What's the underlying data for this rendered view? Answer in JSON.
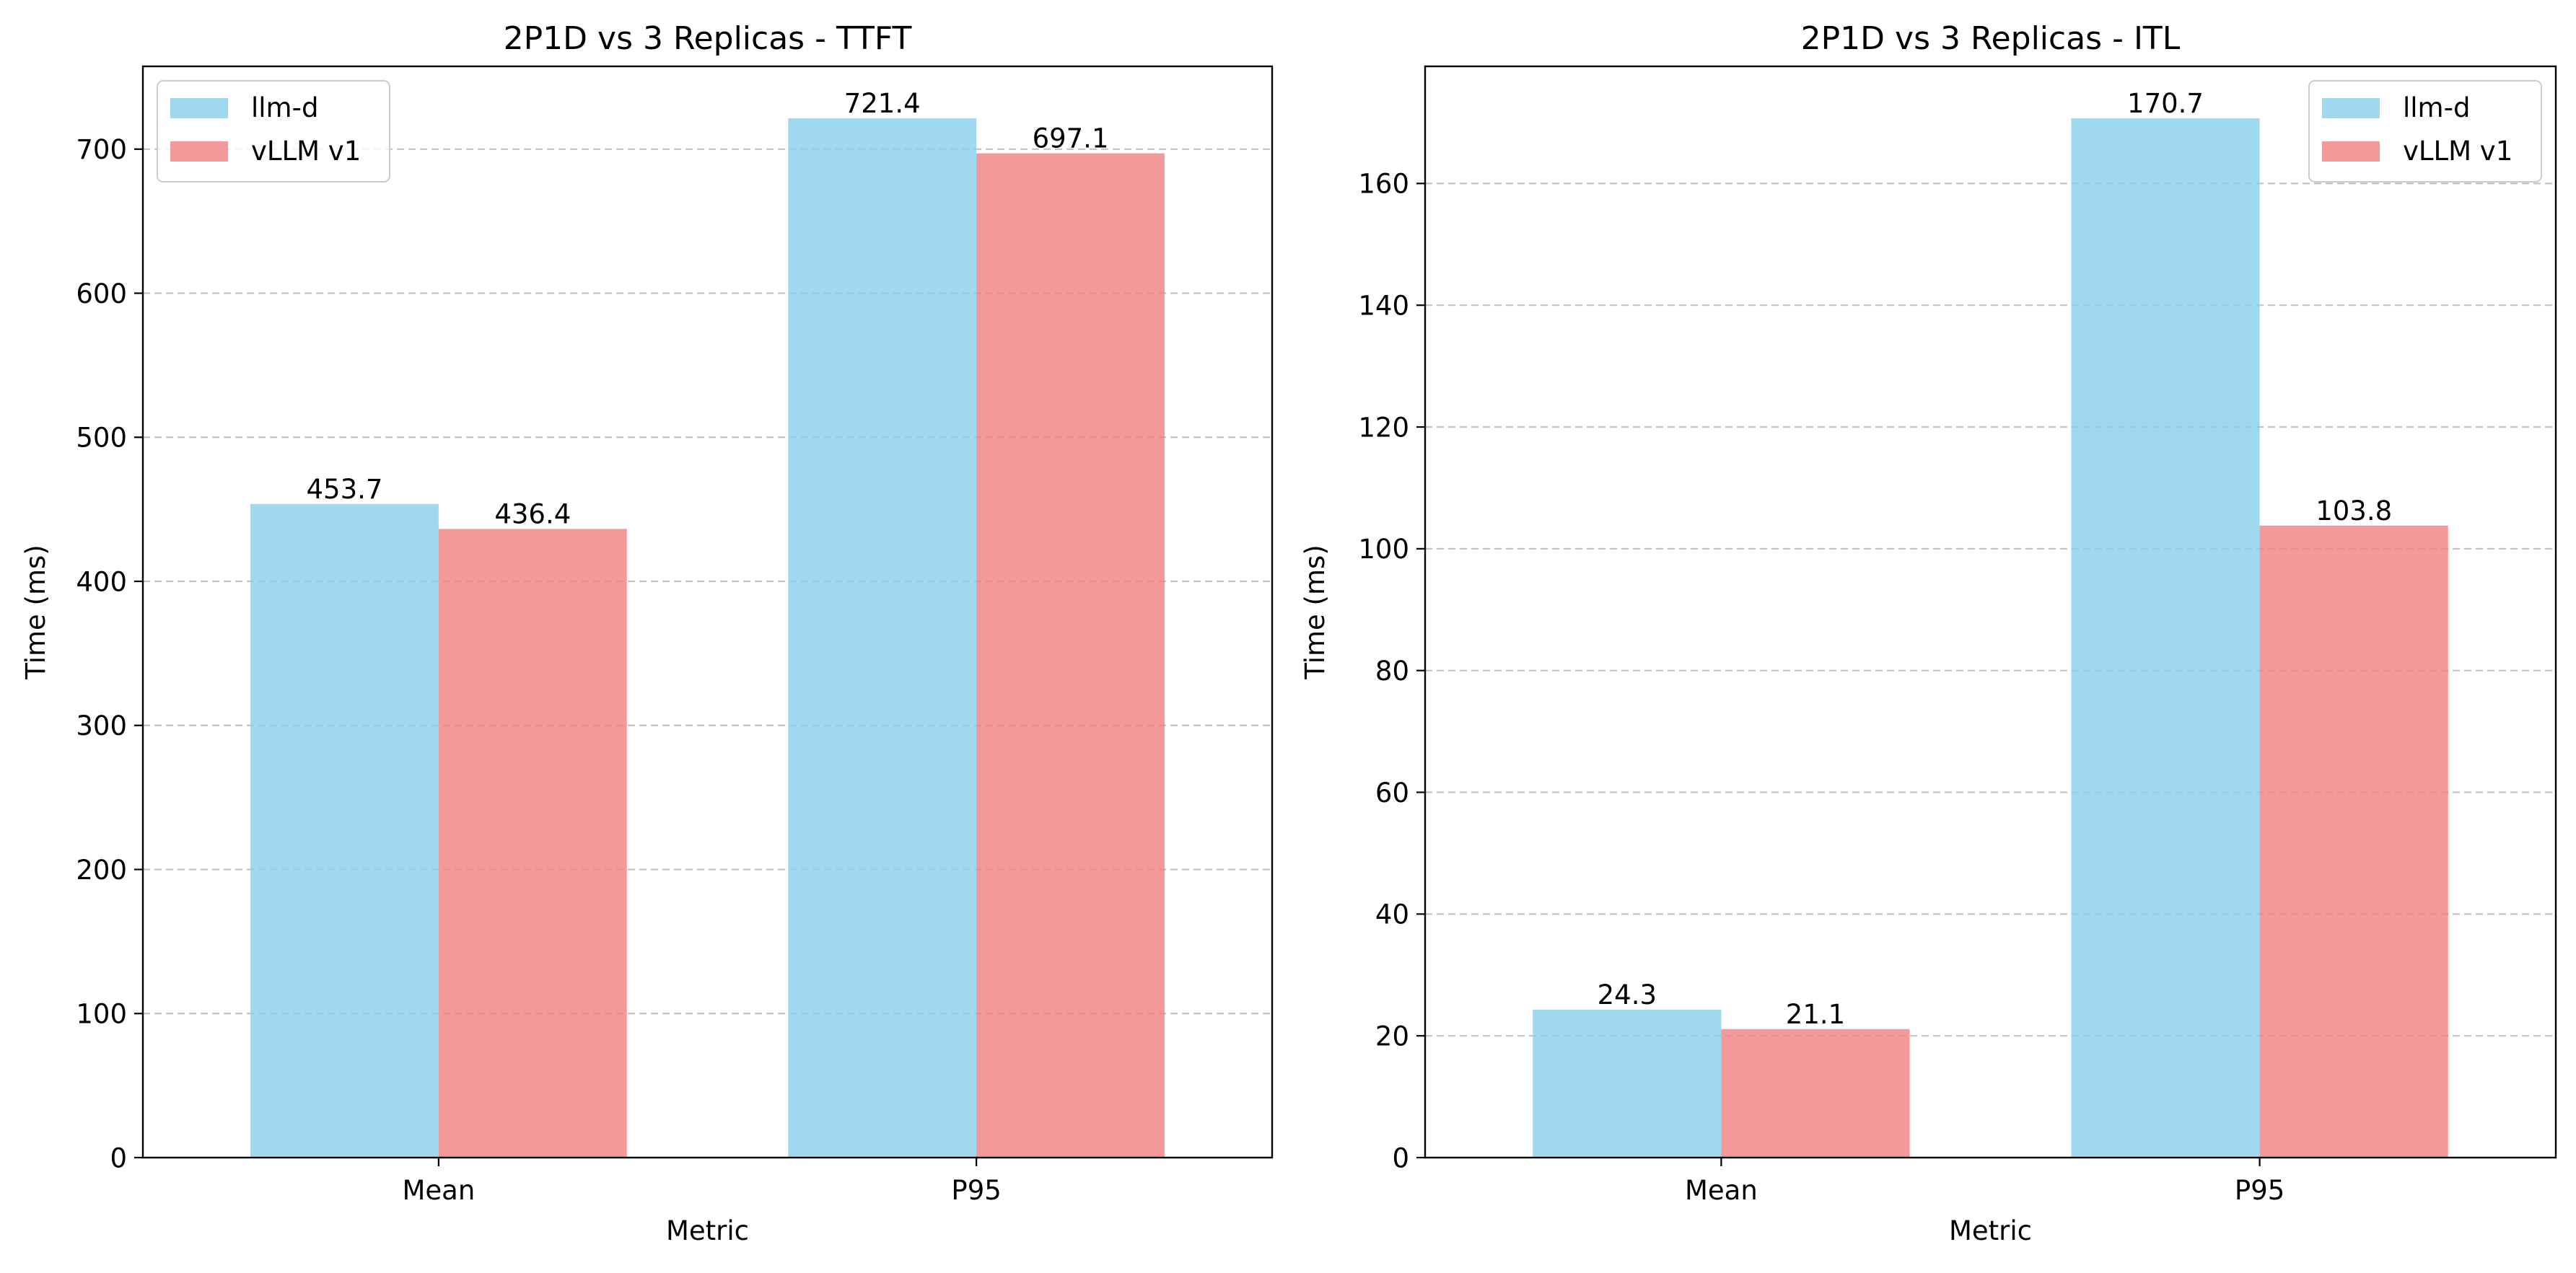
{
  "colors": {
    "llm_d": "#87ceeb",
    "vllm_v1": "#f08080",
    "grid": "#b0b0b0",
    "axis": "#000000"
  },
  "chart_data": [
    {
      "type": "bar",
      "title": "2P1D vs 3 Replicas - TTFT",
      "xlabel": "Metric",
      "ylabel": "Time (ms)",
      "categories": [
        "Mean",
        "P95"
      ],
      "series": [
        {
          "name": "llm-d",
          "values": [
            453.7,
            721.4
          ],
          "labels": [
            "453.7",
            "721.4"
          ]
        },
        {
          "name": "vLLM v1",
          "values": [
            436.4,
            697.1
          ],
          "labels": [
            "436.4",
            "697.1"
          ]
        }
      ],
      "ylim": [
        0,
        757.47
      ],
      "yticks": [
        0,
        100,
        200,
        300,
        400,
        500,
        600,
        700
      ],
      "ytick_labels": [
        "0",
        "100",
        "200",
        "300",
        "400",
        "500",
        "600",
        "700"
      ],
      "grid": "y-dashed",
      "legend": "upper left"
    },
    {
      "type": "bar",
      "title": "2P1D vs 3 Replicas - ITL",
      "xlabel": "Metric",
      "ylabel": "Time (ms)",
      "categories": [
        "Mean",
        "P95"
      ],
      "series": [
        {
          "name": "llm-d",
          "values": [
            24.3,
            170.7
          ],
          "labels": [
            "24.3",
            "170.7"
          ]
        },
        {
          "name": "vLLM v1",
          "values": [
            21.1,
            103.8
          ],
          "labels": [
            "21.1",
            "103.8"
          ]
        }
      ],
      "ylim": [
        0,
        179.235
      ],
      "yticks": [
        0,
        20,
        40,
        60,
        80,
        100,
        120,
        140,
        160
      ],
      "ytick_labels": [
        "0",
        "20",
        "40",
        "60",
        "80",
        "100",
        "120",
        "140",
        "160"
      ],
      "grid": "y-dashed",
      "legend": "upper right"
    }
  ]
}
